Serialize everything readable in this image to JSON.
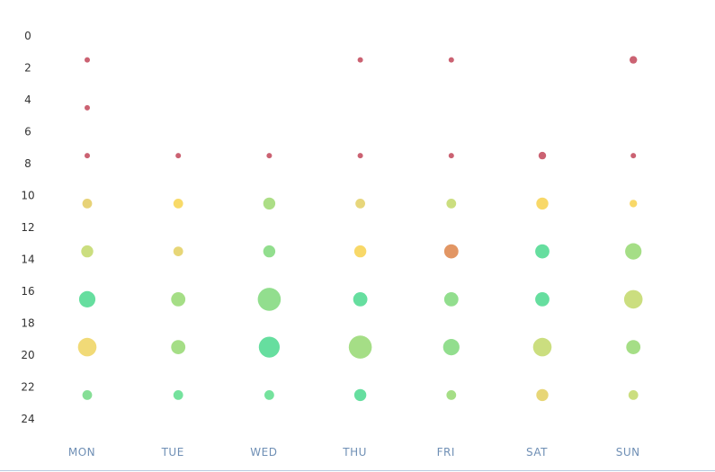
{
  "chart_data": {
    "type": "scatter",
    "subtype": "punch-card bubble",
    "x_categories": [
      "MON",
      "TUE",
      "WED",
      "THU",
      "FRI",
      "SAT",
      "SUN"
    ],
    "y_ticks": [
      "0",
      "2",
      "4",
      "6",
      "8",
      "10",
      "12",
      "14",
      "16",
      "18",
      "20",
      "22",
      "24"
    ],
    "ylim": [
      0,
      25
    ],
    "y_inverted": true,
    "grid": false,
    "legend": "none",
    "size_range": [
      1,
      10
    ],
    "color_scale": {
      "low": "#c85a6a",
      "mid_low": "#e8a060",
      "mid": "#f5d56a",
      "mid_high": "#a8dc80",
      "high": "#5edc9a"
    },
    "points": [
      {
        "day": "MON",
        "hour": 1.5,
        "size": 1
      },
      {
        "day": "MON",
        "hour": 4.5,
        "size": 1
      },
      {
        "day": "MON",
        "hour": 7.5,
        "size": 1
      },
      {
        "day": "MON",
        "hour": 10.5,
        "size": 3,
        "color": "#e6d070"
      },
      {
        "day": "MON",
        "hour": 13.5,
        "size": 4,
        "color": "#c8dc78"
      },
      {
        "day": "MON",
        "hour": 16.5,
        "size": 6,
        "color": "#5edc9a"
      },
      {
        "day": "MON",
        "hour": 19.5,
        "size": 7,
        "color": "#f0d870"
      },
      {
        "day": "MON",
        "hour": 22.5,
        "size": 3,
        "color": "#80dc90"
      },
      {
        "day": "TUE",
        "hour": 7.5,
        "size": 1
      },
      {
        "day": "TUE",
        "hour": 10.5,
        "size": 3,
        "color": "#f8d860"
      },
      {
        "day": "TUE",
        "hour": 13.5,
        "size": 3,
        "color": "#e6d470"
      },
      {
        "day": "TUE",
        "hour": 16.5,
        "size": 5,
        "color": "#a0dc80"
      },
      {
        "day": "TUE",
        "hour": 19.5,
        "size": 5,
        "color": "#a0dc80"
      },
      {
        "day": "TUE",
        "hour": 22.5,
        "size": 3,
        "color": "#6ee098"
      },
      {
        "day": "WED",
        "hour": 7.5,
        "size": 1
      },
      {
        "day": "WED",
        "hour": 10.5,
        "size": 4,
        "color": "#a8dc80"
      },
      {
        "day": "WED",
        "hour": 13.5,
        "size": 4,
        "color": "#8cdc88"
      },
      {
        "day": "WED",
        "hour": 16.5,
        "size": 9,
        "color": "#8cdc88"
      },
      {
        "day": "WED",
        "hour": 19.5,
        "size": 8,
        "color": "#5edc9a"
      },
      {
        "day": "WED",
        "hour": 22.5,
        "size": 3,
        "color": "#6ee098"
      },
      {
        "day": "THU",
        "hour": 1.5,
        "size": 1
      },
      {
        "day": "THU",
        "hour": 7.5,
        "size": 1
      },
      {
        "day": "THU",
        "hour": 10.5,
        "size": 3,
        "color": "#e6d474"
      },
      {
        "day": "THU",
        "hour": 13.5,
        "size": 4,
        "color": "#f8d660"
      },
      {
        "day": "THU",
        "hour": 16.5,
        "size": 5,
        "color": "#5edc9a"
      },
      {
        "day": "THU",
        "hour": 19.5,
        "size": 9,
        "color": "#a0dc80"
      },
      {
        "day": "THU",
        "hour": 22.5,
        "size": 4,
        "color": "#5edc9a"
      },
      {
        "day": "FRI",
        "hour": 1.5,
        "size": 1
      },
      {
        "day": "FRI",
        "hour": 7.5,
        "size": 1
      },
      {
        "day": "FRI",
        "hour": 10.5,
        "size": 3,
        "color": "#c8dc78"
      },
      {
        "day": "FRI",
        "hour": 13.5,
        "size": 5,
        "color": "#e0905c"
      },
      {
        "day": "FRI",
        "hour": 16.5,
        "size": 5,
        "color": "#8cdc88"
      },
      {
        "day": "FRI",
        "hour": 19.5,
        "size": 6,
        "color": "#8cdc88"
      },
      {
        "day": "FRI",
        "hour": 22.5,
        "size": 3,
        "color": "#a0dc80"
      },
      {
        "day": "SAT",
        "hour": 7.5,
        "size": 2
      },
      {
        "day": "SAT",
        "hour": 10.5,
        "size": 4,
        "color": "#f8d660"
      },
      {
        "day": "SAT",
        "hour": 13.5,
        "size": 5,
        "color": "#5edc9a"
      },
      {
        "day": "SAT",
        "hour": 16.5,
        "size": 5,
        "color": "#5edc9a"
      },
      {
        "day": "SAT",
        "hour": 19.5,
        "size": 7,
        "color": "#c8dc78"
      },
      {
        "day": "SAT",
        "hour": 22.5,
        "size": 4,
        "color": "#e6d470"
      },
      {
        "day": "SUN",
        "hour": 1.5,
        "size": 2
      },
      {
        "day": "SUN",
        "hour": 7.5,
        "size": 1
      },
      {
        "day": "SUN",
        "hour": 10.5,
        "size": 2,
        "color": "#f8d660"
      },
      {
        "day": "SUN",
        "hour": 13.5,
        "size": 6,
        "color": "#a0dc80"
      },
      {
        "day": "SUN",
        "hour": 16.5,
        "size": 7,
        "color": "#c8dc78"
      },
      {
        "day": "SUN",
        "hour": 19.5,
        "size": 5,
        "color": "#a0dc80"
      },
      {
        "day": "SUN",
        "hour": 22.5,
        "size": 3,
        "color": "#c8dc78"
      }
    ]
  }
}
